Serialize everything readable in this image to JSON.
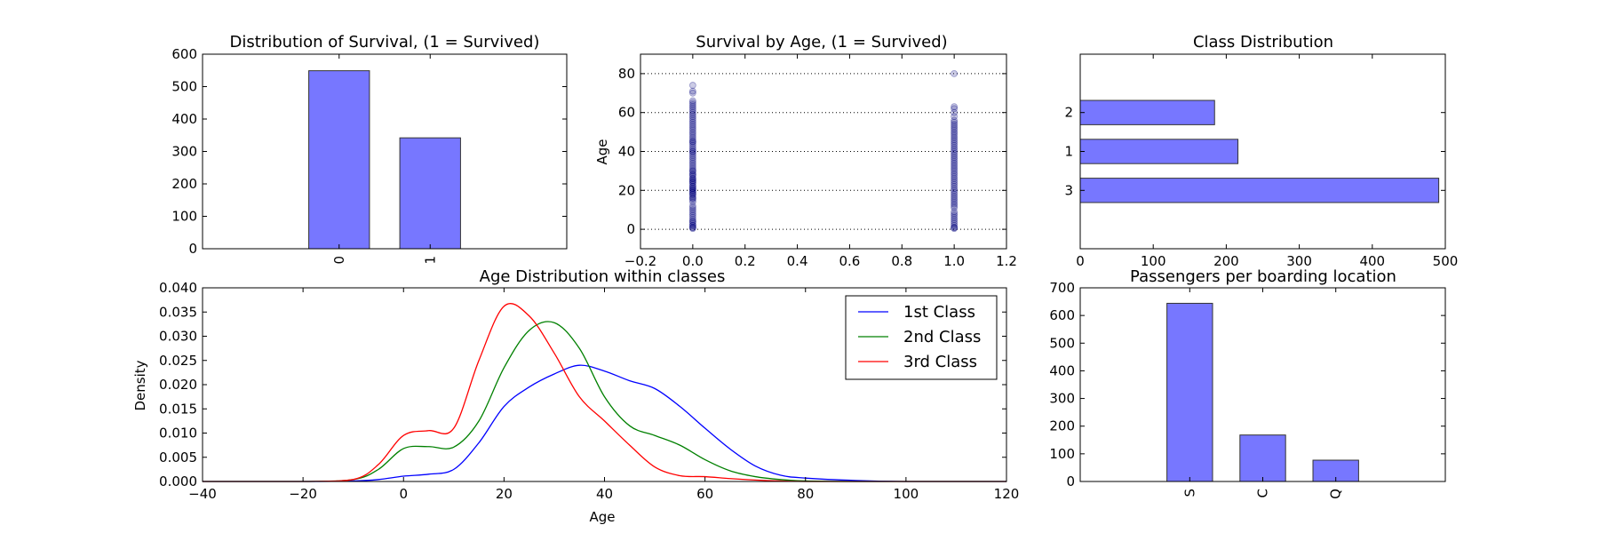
{
  "chart_data": [
    {
      "id": "survival",
      "type": "bar",
      "title": "Distribution of Survival, (1 = Survived)",
      "categories": [
        "0",
        "1"
      ],
      "values": [
        549,
        342
      ],
      "ylim": [
        0,
        600
      ],
      "yticks": [
        "0",
        "100",
        "200",
        "300",
        "400",
        "500",
        "600"
      ],
      "bar_color": "#7777ff",
      "grid": false
    },
    {
      "id": "age_scatter",
      "type": "scatter",
      "title": "Survival by Age,  (1 = Survived)",
      "xlabel": "",
      "ylabel": "Age",
      "xlim": [
        -0.2,
        1.2
      ],
      "ylim": [
        -10,
        90
      ],
      "xticks": [
        "−0.2",
        "0.0",
        "0.2",
        "0.4",
        "0.6",
        "0.8",
        "1.0",
        "1.2"
      ],
      "yticks": [
        "0",
        "20",
        "40",
        "60",
        "80"
      ],
      "grid": true,
      "point_color": "#00007f",
      "series": [
        {
          "x": 0,
          "y": [
            0.4,
            0.8,
            1,
            2,
            2,
            3,
            4,
            4,
            5,
            6,
            7,
            8,
            9,
            10,
            11,
            12,
            14,
            15,
            16,
            16,
            17,
            18,
            18,
            19,
            19,
            20,
            20,
            21,
            21,
            22,
            22,
            23,
            24,
            24,
            25,
            25,
            26,
            26,
            27,
            28,
            28,
            29,
            30,
            30,
            31,
            32,
            33,
            34,
            35,
            36,
            37,
            38,
            39,
            40,
            40,
            41,
            42,
            43,
            44,
            45,
            45,
            46,
            47,
            48,
            49,
            50,
            51,
            52,
            53,
            54,
            55,
            56,
            57,
            58,
            59,
            60,
            61,
            62,
            63,
            64,
            65,
            66,
            70,
            71,
            74
          ]
        },
        {
          "x": 1,
          "y": [
            0.4,
            0.8,
            1,
            2,
            3,
            4,
            5,
            6,
            7,
            8,
            9,
            11,
            12,
            13,
            14,
            15,
            16,
            17,
            18,
            19,
            20,
            21,
            22,
            23,
            24,
            25,
            26,
            27,
            28,
            29,
            30,
            31,
            32,
            33,
            34,
            35,
            36,
            37,
            38,
            39,
            40,
            41,
            42,
            43,
            44,
            45,
            46,
            47,
            48,
            49,
            50,
            51,
            52,
            53,
            54,
            55,
            56,
            58,
            60,
            62,
            63,
            80
          ]
        }
      ]
    },
    {
      "id": "class_dist",
      "type": "bar",
      "orientation": "horizontal",
      "title": "Class Distribution",
      "categories": [
        "3",
        "1",
        "2"
      ],
      "values": [
        491,
        216,
        184
      ],
      "xlim": [
        0,
        500
      ],
      "xticks": [
        "0",
        "100",
        "200",
        "300",
        "400",
        "500"
      ],
      "bar_color": "#7777ff",
      "grid": false
    },
    {
      "id": "age_kde",
      "type": "line",
      "title": "Age Distribution within classes",
      "xlabel": "Age",
      "ylabel": "Density",
      "xlim": [
        -40,
        120
      ],
      "ylim": [
        0,
        0.04
      ],
      "xticks": [
        "−40",
        "−20",
        "0",
        "20",
        "40",
        "60",
        "80",
        "100",
        "120"
      ],
      "yticks": [
        "0.000",
        "0.005",
        "0.010",
        "0.015",
        "0.020",
        "0.025",
        "0.030",
        "0.035",
        "0.040"
      ],
      "legend": "top-right",
      "grid": false,
      "x": [
        -40,
        -20,
        -10,
        -5,
        0,
        5,
        10,
        15,
        20,
        25,
        30,
        35,
        40,
        45,
        50,
        55,
        60,
        65,
        70,
        75,
        80,
        90,
        100,
        120
      ],
      "series": [
        {
          "name": "1st Class",
          "color": "#0000ff",
          "values": [
            0,
            0,
            0.0001,
            0.0004,
            0.0011,
            0.0015,
            0.0025,
            0.008,
            0.0155,
            0.0195,
            0.0222,
            0.024,
            0.0228,
            0.0208,
            0.0192,
            0.0155,
            0.011,
            0.0067,
            0.0032,
            0.0013,
            0.0007,
            0.0002,
            0,
            0
          ]
        },
        {
          "name": "2nd Class",
          "color": "#008000",
          "values": [
            0,
            0,
            0.0004,
            0.0025,
            0.0068,
            0.0072,
            0.0071,
            0.0125,
            0.0235,
            0.0312,
            0.0328,
            0.0275,
            0.0175,
            0.0115,
            0.0095,
            0.0075,
            0.0045,
            0.0022,
            0.001,
            0.0004,
            0.0001,
            0,
            0,
            0
          ]
        },
        {
          "name": "3rd Class",
          "color": "#ff0000",
          "values": [
            0,
            0,
            0.0004,
            0.0035,
            0.0095,
            0.0105,
            0.011,
            0.025,
            0.0362,
            0.0342,
            0.0265,
            0.0175,
            0.0125,
            0.0075,
            0.003,
            0.0012,
            0.001,
            0.0006,
            0.0003,
            0.0001,
            0,
            0,
            0,
            0
          ]
        }
      ]
    },
    {
      "id": "embarked",
      "type": "bar",
      "title": "Passengers per boarding location",
      "categories": [
        "S",
        "C",
        "Q"
      ],
      "values": [
        644,
        168,
        77
      ],
      "ylim": [
        0,
        700
      ],
      "yticks": [
        "0",
        "100",
        "200",
        "300",
        "400",
        "500",
        "600",
        "700"
      ],
      "bar_color": "#7777ff",
      "grid": false
    }
  ]
}
